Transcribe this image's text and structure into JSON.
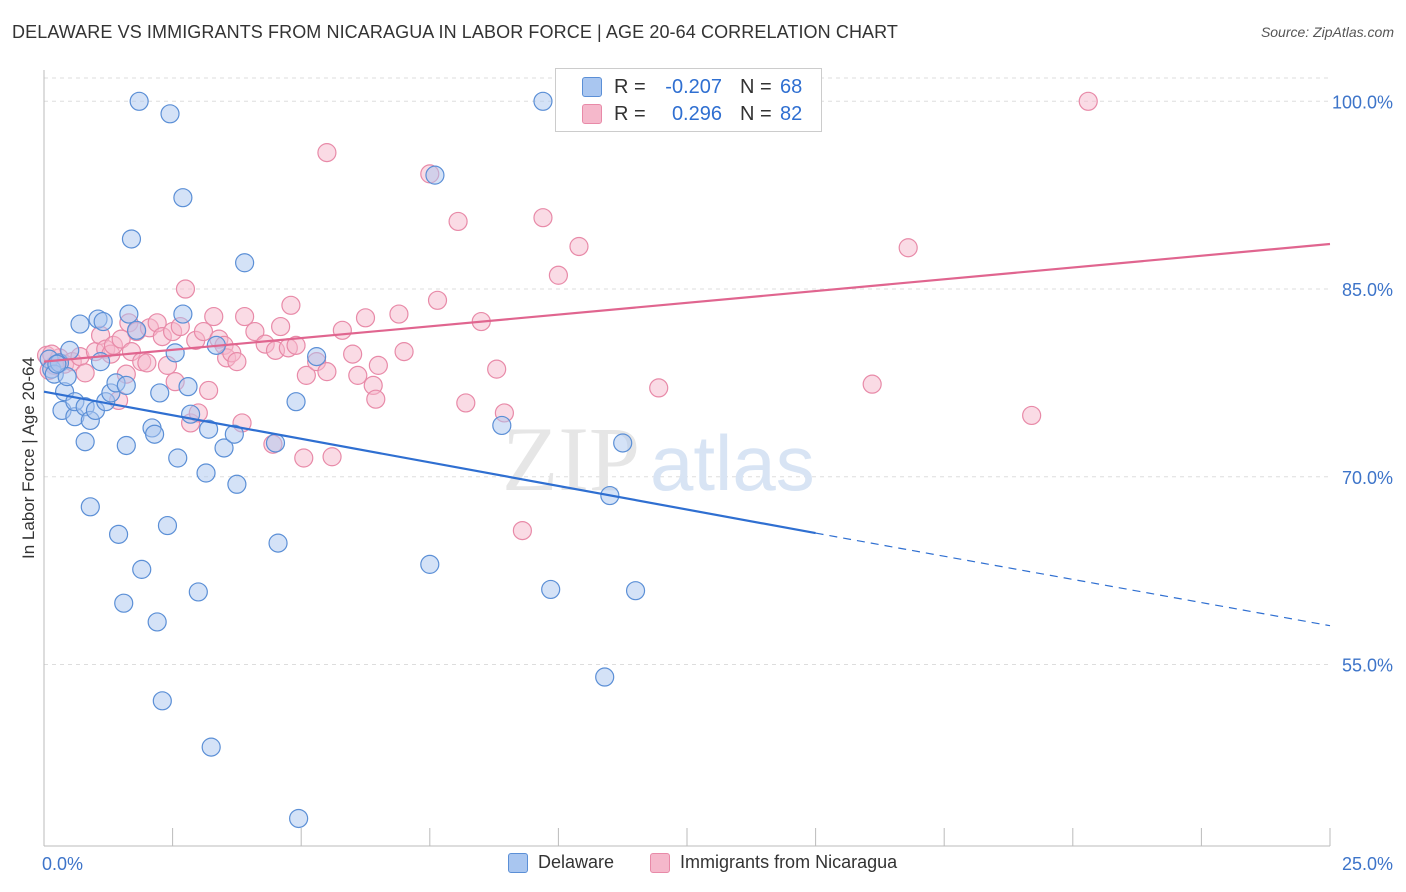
{
  "title": "DELAWARE VS IMMIGRANTS FROM NICARAGUA IN LABOR FORCE | AGE 20-64 CORRELATION CHART",
  "source": "Source: ZipAtlas.com",
  "watermark": {
    "zip": "ZIP",
    "atlas": "atlas"
  },
  "stats": {
    "r_label": "R =",
    "n_label": "N =",
    "delaware": {
      "r": "-0.207",
      "n": "68"
    },
    "nicaragua": {
      "r": "0.296",
      "n": "82"
    }
  },
  "legend": {
    "delaware": "Delaware",
    "nicaragua": "Immigrants from Nicaragua"
  },
  "colors": {
    "blue_fill": "#a9c6f0",
    "blue_stroke": "#5b8fd6",
    "blue_line": "#2f6fd1",
    "pink_fill": "#f5b8cb",
    "pink_stroke": "#e88aa8",
    "pink_line": "#e0658f",
    "axis_text": "#3d74c9",
    "grid": "#dddddd"
  },
  "chart_data": {
    "type": "scatter",
    "xlabel": "In Labor Force | Age 20-64",
    "ylabel": "In Labor Force | Age 20-64",
    "xlim": [
      0,
      25
    ],
    "ylim": [
      40.5,
      102.5
    ],
    "x_tick_labels": [
      {
        "value": 0,
        "label": "0.0%"
      },
      {
        "value": 25,
        "label": "25.0%"
      }
    ],
    "y_tick_labels": [
      {
        "value": 100,
        "label": "100.0%"
      },
      {
        "value": 85,
        "label": "85.0%"
      },
      {
        "value": 70,
        "label": "70.0%"
      },
      {
        "value": 55,
        "label": "55.0%"
      }
    ],
    "series": [
      {
        "name": "Delaware",
        "trend": {
          "x0": 0,
          "y0": 76.8,
          "x1": 15.0,
          "y1": 65.5,
          "dashed_to_x": 25.0,
          "dashed_to_y": 58.1
        },
        "points": [
          [
            0.1,
            79.4
          ],
          [
            0.15,
            78.6
          ],
          [
            0.2,
            78.2
          ],
          [
            0.3,
            79.1
          ],
          [
            0.35,
            75.3
          ],
          [
            0.4,
            76.8
          ],
          [
            0.45,
            78.0
          ],
          [
            0.5,
            80.1
          ],
          [
            0.6,
            74.8
          ],
          [
            0.6,
            76.0
          ],
          [
            0.7,
            82.2
          ],
          [
            0.8,
            72.8
          ],
          [
            0.8,
            75.6
          ],
          [
            0.9,
            67.6
          ],
          [
            0.9,
            74.5
          ],
          [
            1.0,
            75.3
          ],
          [
            1.05,
            82.6
          ],
          [
            1.1,
            79.2
          ],
          [
            1.15,
            82.4
          ],
          [
            1.2,
            76.0
          ],
          [
            1.3,
            76.7
          ],
          [
            1.4,
            77.5
          ],
          [
            1.45,
            65.4
          ],
          [
            1.55,
            59.9
          ],
          [
            1.6,
            72.5
          ],
          [
            1.6,
            77.3
          ],
          [
            1.65,
            83.0
          ],
          [
            1.7,
            89.0
          ],
          [
            1.8,
            81.7
          ],
          [
            1.9,
            62.6
          ],
          [
            1.85,
            100.0
          ],
          [
            2.1,
            73.9
          ],
          [
            2.15,
            73.4
          ],
          [
            2.2,
            58.4
          ],
          [
            2.25,
            76.7
          ],
          [
            2.3,
            52.1
          ],
          [
            2.4,
            66.1
          ],
          [
            2.45,
            99.0
          ],
          [
            2.55,
            79.9
          ],
          [
            2.6,
            71.5
          ],
          [
            2.7,
            83.0
          ],
          [
            2.7,
            92.3
          ],
          [
            2.8,
            77.2
          ],
          [
            2.85,
            75.0
          ],
          [
            3.0,
            60.8
          ],
          [
            3.15,
            70.3
          ],
          [
            3.2,
            73.8
          ],
          [
            3.25,
            48.4
          ],
          [
            3.35,
            80.5
          ],
          [
            3.5,
            72.3
          ],
          [
            3.7,
            73.4
          ],
          [
            3.75,
            69.4
          ],
          [
            3.9,
            87.1
          ],
          [
            4.5,
            72.7
          ],
          [
            4.55,
            64.7
          ],
          [
            4.9,
            76.0
          ],
          [
            4.95,
            42.7
          ],
          [
            5.3,
            79.6
          ],
          [
            7.5,
            63.0
          ],
          [
            7.6,
            94.1
          ],
          [
            8.9,
            74.1
          ],
          [
            9.7,
            100.0
          ],
          [
            9.85,
            61.0
          ],
          [
            10.9,
            54.0
          ],
          [
            11.0,
            68.5
          ],
          [
            11.25,
            72.7
          ],
          [
            11.5,
            60.9
          ],
          [
            0.25,
            79.0
          ]
        ]
      },
      {
        "name": "Immigrants from Nicaragua",
        "trend": {
          "x0": 0,
          "y0": 79.2,
          "x1": 25.0,
          "y1": 88.6
        },
        "points": [
          [
            0.05,
            79.7
          ],
          [
            0.1,
            78.5
          ],
          [
            0.2,
            78.9
          ],
          [
            0.3,
            79.5
          ],
          [
            0.4,
            79.0
          ],
          [
            0.55,
            79.2
          ],
          [
            0.7,
            79.6
          ],
          [
            0.8,
            78.3
          ],
          [
            1.0,
            80.0
          ],
          [
            1.1,
            81.3
          ],
          [
            1.2,
            80.2
          ],
          [
            1.3,
            79.8
          ],
          [
            1.35,
            80.5
          ],
          [
            1.45,
            76.1
          ],
          [
            1.5,
            81.0
          ],
          [
            1.6,
            78.2
          ],
          [
            1.65,
            82.3
          ],
          [
            1.7,
            80.0
          ],
          [
            1.8,
            81.6
          ],
          [
            1.9,
            79.2
          ],
          [
            2.0,
            79.1
          ],
          [
            2.05,
            81.9
          ],
          [
            2.2,
            82.3
          ],
          [
            2.3,
            81.2
          ],
          [
            2.4,
            78.9
          ],
          [
            2.5,
            81.6
          ],
          [
            2.55,
            77.6
          ],
          [
            2.65,
            82.0
          ],
          [
            2.75,
            85.0
          ],
          [
            2.85,
            74.3
          ],
          [
            2.95,
            80.9
          ],
          [
            3.0,
            75.1
          ],
          [
            3.1,
            81.6
          ],
          [
            3.2,
            76.9
          ],
          [
            3.3,
            82.8
          ],
          [
            3.4,
            81.0
          ],
          [
            3.5,
            80.5
          ],
          [
            3.55,
            79.5
          ],
          [
            3.65,
            79.9
          ],
          [
            3.75,
            79.2
          ],
          [
            3.85,
            74.3
          ],
          [
            3.9,
            82.8
          ],
          [
            4.1,
            81.6
          ],
          [
            4.3,
            80.6
          ],
          [
            4.45,
            72.6
          ],
          [
            4.5,
            80.1
          ],
          [
            4.6,
            82.0
          ],
          [
            4.75,
            80.3
          ],
          [
            4.8,
            83.7
          ],
          [
            4.9,
            80.5
          ],
          [
            5.05,
            71.5
          ],
          [
            5.1,
            78.1
          ],
          [
            5.3,
            79.2
          ],
          [
            5.5,
            78.4
          ],
          [
            5.6,
            71.6
          ],
          [
            5.8,
            81.7
          ],
          [
            5.5,
            95.9
          ],
          [
            6.0,
            79.8
          ],
          [
            6.1,
            78.1
          ],
          [
            6.25,
            82.7
          ],
          [
            6.4,
            77.3
          ],
          [
            6.45,
            76.2
          ],
          [
            6.5,
            78.9
          ],
          [
            6.9,
            83.0
          ],
          [
            7.0,
            80.0
          ],
          [
            7.5,
            94.2
          ],
          [
            7.65,
            84.1
          ],
          [
            8.05,
            90.4
          ],
          [
            8.2,
            75.9
          ],
          [
            8.5,
            82.4
          ],
          [
            8.8,
            78.6
          ],
          [
            8.95,
            75.1
          ],
          [
            9.3,
            65.7
          ],
          [
            9.7,
            90.7
          ],
          [
            10.0,
            86.1
          ],
          [
            10.4,
            88.4
          ],
          [
            11.95,
            77.1
          ],
          [
            16.1,
            77.4
          ],
          [
            16.8,
            88.3
          ],
          [
            19.2,
            74.9
          ],
          [
            20.3,
            100.0
          ],
          [
            0.15,
            79.8
          ]
        ]
      }
    ],
    "grid": true,
    "legend_placement": "bottom"
  }
}
